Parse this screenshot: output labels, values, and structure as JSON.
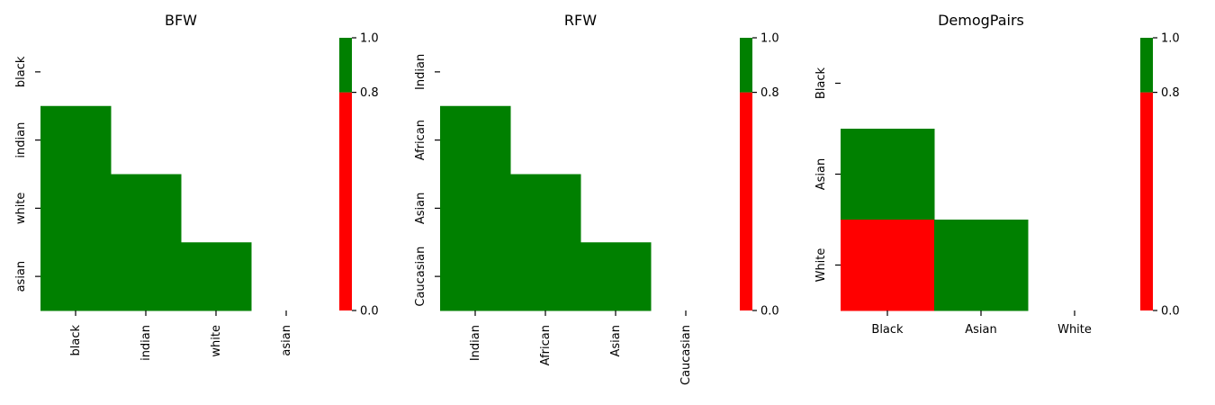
{
  "chart_data": [
    {
      "type": "heatmap",
      "title": "BFW",
      "x_categories": [
        "black",
        "indian",
        "white",
        "asian"
      ],
      "y_categories": [
        "black",
        "indian",
        "white",
        "asian"
      ],
      "x_tick_rotation": "vertical",
      "y_tick_rotation": "vertical",
      "cells": [
        {
          "row": "indian",
          "col": "black",
          "value": 0.9
        },
        {
          "row": "white",
          "col": "black",
          "value": 0.9
        },
        {
          "row": "white",
          "col": "indian",
          "value": 0.9
        },
        {
          "row": "asian",
          "col": "black",
          "value": 0.9
        },
        {
          "row": "asian",
          "col": "indian",
          "value": 0.9
        },
        {
          "row": "asian",
          "col": "white",
          "value": 0.9
        }
      ],
      "colorbar": {
        "ticks": [
          "0.0",
          "0.8",
          "1.0"
        ],
        "threshold": 0.8,
        "range": [
          0,
          1
        ]
      }
    },
    {
      "type": "heatmap",
      "title": "RFW",
      "x_categories": [
        "Indian",
        "African",
        "Asian",
        "Caucasian"
      ],
      "y_categories": [
        "Indian",
        "African",
        "Asian",
        "Caucasian"
      ],
      "x_tick_rotation": "vertical",
      "y_tick_rotation": "vertical",
      "cells": [
        {
          "row": "African",
          "col": "Indian",
          "value": 0.9
        },
        {
          "row": "Asian",
          "col": "Indian",
          "value": 0.9
        },
        {
          "row": "Asian",
          "col": "African",
          "value": 0.9
        },
        {
          "row": "Caucasian",
          "col": "Indian",
          "value": 0.9
        },
        {
          "row": "Caucasian",
          "col": "African",
          "value": 0.9
        },
        {
          "row": "Caucasian",
          "col": "Asian",
          "value": 0.9
        }
      ],
      "colorbar": {
        "ticks": [
          "0.0",
          "0.8",
          "1.0"
        ],
        "threshold": 0.8,
        "range": [
          0,
          1
        ]
      }
    },
    {
      "type": "heatmap",
      "title": "DemogPairs",
      "x_categories": [
        "Black",
        "Asian",
        "White"
      ],
      "y_categories": [
        "Black",
        "Asian",
        "White"
      ],
      "x_tick_rotation": "horizontal",
      "y_tick_rotation": "vertical",
      "cells": [
        {
          "row": "Asian",
          "col": "Black",
          "value": 0.9
        },
        {
          "row": "White",
          "col": "Black",
          "value": 0.4
        },
        {
          "row": "White",
          "col": "Asian",
          "value": 0.9
        }
      ],
      "colorbar": {
        "ticks": [
          "0.0",
          "0.8",
          "1.0"
        ],
        "threshold": 0.8,
        "range": [
          0,
          1
        ]
      }
    }
  ],
  "colors": {
    "above_threshold": "#008000",
    "below_threshold": "#ff0000"
  }
}
